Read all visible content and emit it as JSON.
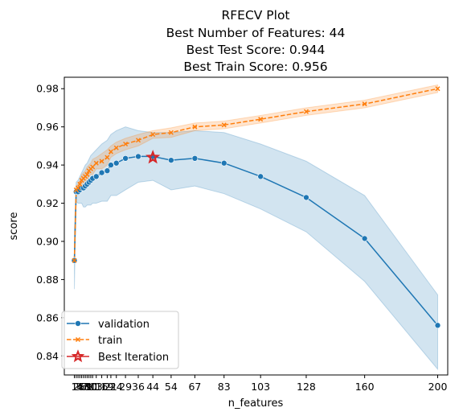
{
  "chart_data": {
    "type": "line",
    "title": [
      "RFECV Plot",
      "Best Number of Features: 44",
      "Best Test Score: 0.944",
      "Best Train Score: 0.956"
    ],
    "xlabel": "n_features",
    "ylabel": "score",
    "xlim": [
      1,
      200
    ],
    "ylim": [
      0.83,
      0.986
    ],
    "yticks": [
      0.84,
      0.86,
      0.88,
      0.9,
      0.92,
      0.94,
      0.96,
      0.98
    ],
    "ytick_labels": [
      "0.84",
      "0.86",
      "0.88",
      "0.90",
      "0.92",
      "0.94",
      "0.96",
      "0.98"
    ],
    "xticks": [
      1,
      2,
      3,
      4,
      5,
      6,
      7,
      8,
      9,
      10,
      11,
      13,
      16,
      19,
      21,
      24,
      29,
      36,
      44,
      54,
      67,
      83,
      103,
      128,
      160,
      200
    ],
    "xtick_labels": [
      "1",
      "2",
      "3",
      "4",
      "5",
      "6",
      "7",
      "8",
      "9",
      "10",
      "11",
      "13",
      "16",
      "19",
      "21",
      "24",
      "29",
      "36",
      "44",
      "54",
      "67",
      "83",
      "103",
      "128",
      "160",
      "200"
    ],
    "series": [
      {
        "name": "validation",
        "color": "#1f77b4",
        "marker": "circle",
        "linestyle": "solid",
        "x": [
          1,
          2,
          3,
          4,
          5,
          6,
          7,
          8,
          9,
          10,
          11,
          13,
          16,
          19,
          21,
          24,
          29,
          36,
          44,
          54,
          67,
          83,
          103,
          128,
          160,
          200
        ],
        "values": [
          0.89,
          0.926,
          0.926,
          0.927,
          0.928,
          0.928,
          0.929,
          0.93,
          0.931,
          0.932,
          0.933,
          0.934,
          0.936,
          0.937,
          0.94,
          0.941,
          0.9435,
          0.9445,
          0.9445,
          0.9425,
          0.9435,
          0.941,
          0.934,
          0.923,
          0.9015,
          0.856
        ],
        "band_upper": [
          0.905,
          0.931,
          0.932,
          0.934,
          0.936,
          0.938,
          0.94,
          0.941,
          0.943,
          0.945,
          0.946,
          0.948,
          0.951,
          0.953,
          0.956,
          0.958,
          0.96,
          0.958,
          0.957,
          0.957,
          0.958,
          0.957,
          0.951,
          0.942,
          0.924,
          0.872
        ],
        "band_lower": [
          0.875,
          0.921,
          0.92,
          0.92,
          0.92,
          0.918,
          0.918,
          0.919,
          0.919,
          0.919,
          0.92,
          0.92,
          0.921,
          0.921,
          0.924,
          0.924,
          0.927,
          0.931,
          0.932,
          0.927,
          0.929,
          0.925,
          0.917,
          0.905,
          0.879,
          0.833
        ]
      },
      {
        "name": "train",
        "color": "#ff7f0e",
        "marker": "x",
        "linestyle": "dashed",
        "x": [
          1,
          2,
          3,
          4,
          5,
          6,
          7,
          8,
          9,
          10,
          11,
          13,
          16,
          19,
          21,
          24,
          29,
          36,
          44,
          54,
          67,
          83,
          103,
          128,
          160,
          200
        ],
        "values": [
          0.89,
          0.927,
          0.928,
          0.93,
          0.932,
          0.933,
          0.934,
          0.935,
          0.937,
          0.938,
          0.939,
          0.941,
          0.942,
          0.944,
          0.947,
          0.949,
          0.951,
          0.953,
          0.956,
          0.957,
          0.96,
          0.961,
          0.964,
          0.968,
          0.972,
          0.98
        ],
        "band_upper": [
          0.891,
          0.929,
          0.93,
          0.932,
          0.935,
          0.936,
          0.937,
          0.939,
          0.94,
          0.941,
          0.943,
          0.944,
          0.946,
          0.948,
          0.95,
          0.952,
          0.954,
          0.956,
          0.958,
          0.9595,
          0.962,
          0.963,
          0.966,
          0.97,
          0.974,
          0.982
        ],
        "band_lower": [
          0.889,
          0.925,
          0.926,
          0.928,
          0.929,
          0.93,
          0.931,
          0.932,
          0.934,
          0.935,
          0.935,
          0.938,
          0.938,
          0.94,
          0.944,
          0.946,
          0.948,
          0.95,
          0.954,
          0.9545,
          0.958,
          0.959,
          0.962,
          0.966,
          0.97,
          0.978
        ]
      }
    ],
    "best_point": {
      "name": "Best Iteration",
      "x": 44,
      "y": 0.944,
      "color": "#d62728",
      "marker": "star"
    },
    "legend": {
      "placement": "lower-left",
      "entries": [
        "validation",
        "train",
        "Best Iteration"
      ]
    },
    "grid": false
  }
}
